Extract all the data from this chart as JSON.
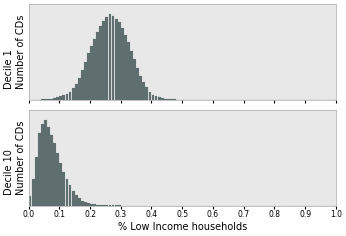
{
  "title": "",
  "xlabel": "% Low Income households",
  "ylabel_line1": "Decile 1",
  "ylabel_line2": "Number of CDs",
  "ylabel_line1_d10": "Decile 10",
  "xlim": [
    0.0,
    1.0
  ],
  "xticks": [
    0.0,
    0.1,
    0.2,
    0.3,
    0.4,
    0.5,
    0.6,
    0.7,
    0.8,
    0.9,
    1.0
  ],
  "bar_color": "#5f6e6e",
  "bar_edgecolor": "#5f6e6e",
  "background_color": "#ffffff",
  "panel_facecolor": "#e8e8e8",
  "decile1_data": {
    "heights": [
      1,
      1,
      1,
      1,
      2,
      2,
      3,
      3,
      4,
      5,
      7,
      9,
      12,
      16,
      22,
      30,
      42,
      56,
      72,
      88,
      102,
      115,
      128,
      138,
      148,
      155,
      160,
      158,
      152,
      145,
      135,
      122,
      108,
      92,
      76,
      60,
      46,
      34,
      24,
      16,
      10,
      7,
      5,
      4,
      3,
      2,
      2,
      2,
      1,
      1,
      1,
      1,
      1,
      1,
      1,
      1,
      0,
      0,
      0,
      0,
      0,
      0,
      0,
      0,
      0,
      0,
      0,
      0,
      0,
      0,
      0,
      0,
      0,
      0,
      0,
      0,
      0,
      0,
      0,
      0,
      0,
      0,
      0,
      0,
      0,
      0,
      0,
      0,
      0,
      0,
      0,
      0,
      0,
      0,
      0,
      0,
      0,
      0,
      0,
      0
    ]
  },
  "decile10_data": {
    "heights": [
      20,
      55,
      100,
      148,
      168,
      175,
      162,
      145,
      128,
      108,
      88,
      70,
      55,
      42,
      30,
      22,
      16,
      11,
      8,
      6,
      4,
      3,
      2,
      2,
      1,
      1,
      1,
      1,
      1,
      1,
      0,
      0,
      0,
      0,
      0,
      0,
      0,
      0,
      0,
      0,
      0,
      0,
      0,
      0,
      0,
      0,
      0,
      0,
      0,
      0,
      0,
      0,
      0,
      0,
      0,
      0,
      0,
      0,
      0,
      0,
      0,
      0,
      0,
      0,
      0,
      0,
      0,
      0,
      0,
      0,
      0,
      0,
      0,
      0,
      0,
      0,
      0,
      0,
      0,
      0,
      0,
      0,
      0,
      0,
      0,
      0,
      0,
      0,
      0,
      0,
      0,
      0,
      0,
      0,
      0,
      0,
      0,
      0,
      0,
      0
    ]
  },
  "bin_width": 0.01,
  "ylabel_fontsize1": 7,
  "ylabel_fontsize2": 5.5,
  "xlabel_fontsize": 7,
  "tick_fontsize": 5.5,
  "grid_color": "#bbbbbb",
  "grid_linewidth": 0.5,
  "spine_color": "#aaaaaa",
  "spine_linewidth": 0.5
}
